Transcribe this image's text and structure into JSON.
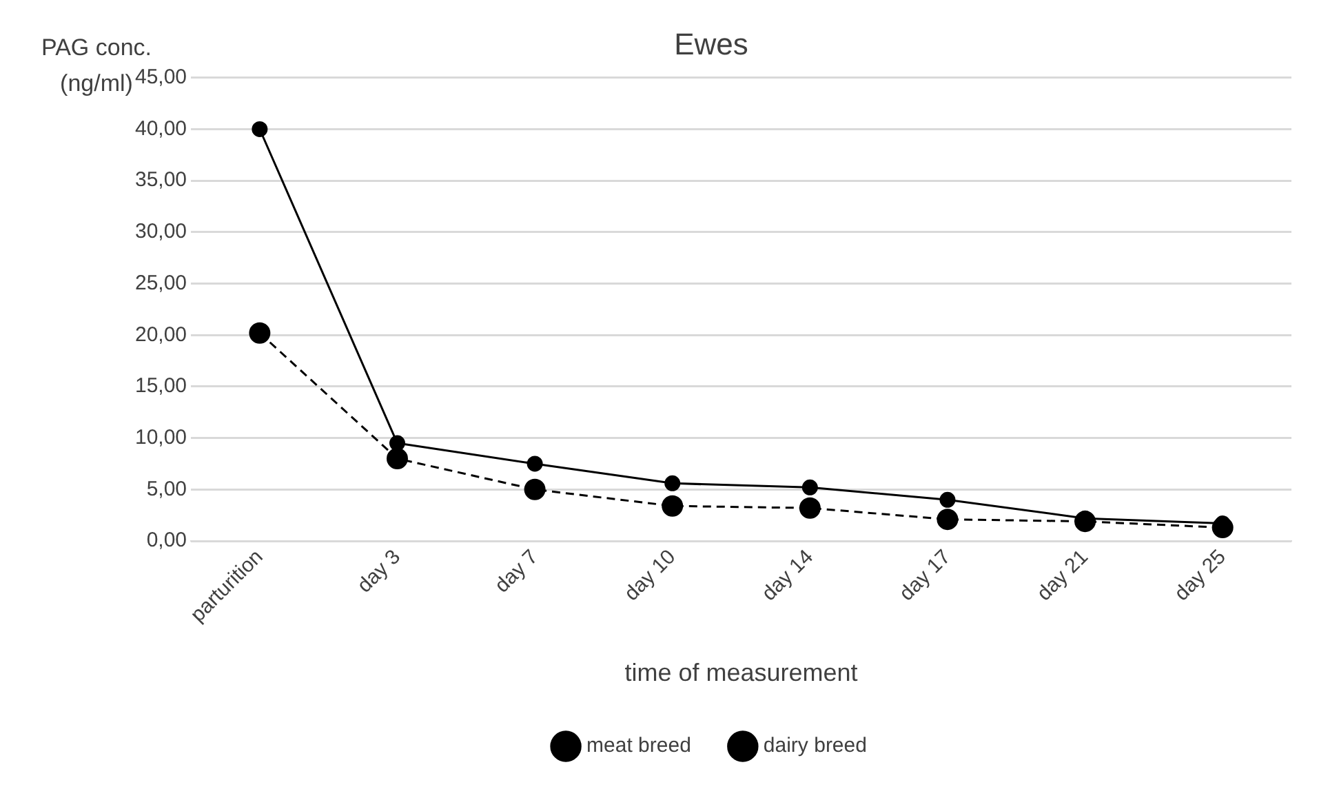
{
  "chart_data": {
    "type": "line",
    "title": "Ewes",
    "xlabel": "time of measurement",
    "ylabel": "PAG conc. (ng/ml)",
    "categories": [
      "parturition",
      "day 3",
      "day 7",
      "day 10",
      "day 14",
      "day 17",
      "day 21",
      "day 25"
    ],
    "series": [
      {
        "name": "meat breed",
        "color": "#000000",
        "line_style": "solid",
        "values": [
          40,
          9.5,
          7.5,
          5.6,
          5.2,
          4,
          2.2,
          1.7
        ]
      },
      {
        "name": "dairy breed",
        "color": "#000000",
        "line_style": "dashed",
        "values": [
          20.2,
          8,
          5,
          3.4,
          3.2,
          2.1,
          1.9,
          1.3
        ]
      }
    ],
    "ylim": [
      0,
      45
    ],
    "yticks": [
      {
        "value": 0,
        "label": "0,00"
      },
      {
        "value": 5,
        "label": "5,00"
      },
      {
        "value": 10,
        "label": "10,00"
      },
      {
        "value": 15,
        "label": "15,00"
      },
      {
        "value": 20,
        "label": "20,00"
      },
      {
        "value": 25,
        "label": "25,00"
      },
      {
        "value": 30,
        "label": "30,00"
      },
      {
        "value": 35,
        "label": "35,00"
      },
      {
        "value": 40,
        "label": "40,00"
      },
      {
        "value": 45,
        "label": "45,00"
      }
    ],
    "grid": "y",
    "legend": "bottom",
    "marker": "circle"
  }
}
